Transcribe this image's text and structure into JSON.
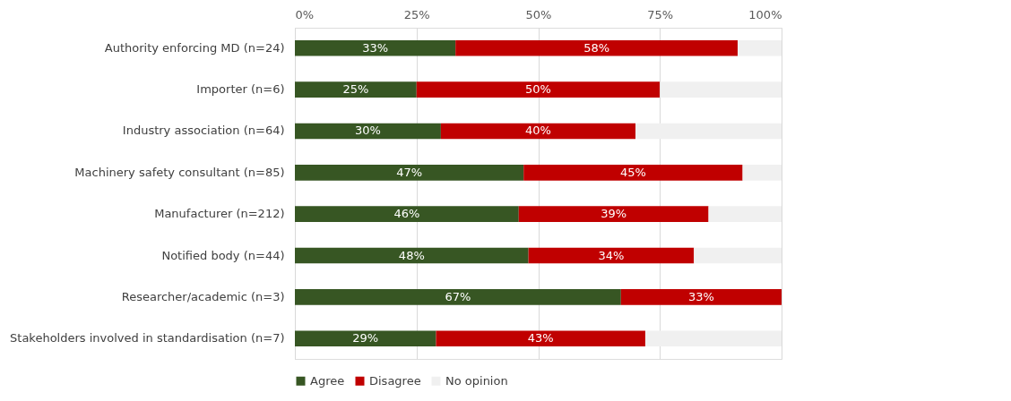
{
  "chart_data": {
    "type": "bar",
    "orientation": "horizontal",
    "stacked": true,
    "categories": [
      "Authority enforcing MD (n=24)",
      "Importer (n=6)",
      "Industry association (n=64)",
      "Machinery safety consultant (n=85)",
      "Manufacturer (n=212)",
      "Notified body (n=44)",
      "Researcher/academic (n=3)",
      "Stakeholders involved in standardisation (n=7)"
    ],
    "series": [
      {
        "name": "Agree",
        "color": "#375623",
        "values": [
          33,
          25,
          30,
          47,
          46,
          48,
          67,
          29
        ],
        "value_labels": [
          "33%",
          "25%",
          "30%",
          "47%",
          "46%",
          "48%",
          "67%",
          "29%"
        ]
      },
      {
        "name": "Disagree",
        "color": "#c00000",
        "values": [
          58,
          50,
          40,
          45,
          39,
          34,
          33,
          43
        ],
        "value_labels": [
          "58%",
          "50%",
          "40%",
          "45%",
          "39%",
          "34%",
          "33%",
          "43%"
        ]
      },
      {
        "name": "No opinion",
        "color": "#f0f0f0",
        "values": [
          9,
          25,
          30,
          8,
          15,
          18,
          0,
          28
        ]
      }
    ],
    "xlim": [
      0,
      100
    ],
    "xticks": [
      {
        "value": 0,
        "label": "0%"
      },
      {
        "value": 25,
        "label": "25%"
      },
      {
        "value": 50,
        "label": "50%"
      },
      {
        "value": 75,
        "label": "75%"
      },
      {
        "value": 100,
        "label": "100%"
      }
    ],
    "grid": "x",
    "legend": "bottom"
  }
}
